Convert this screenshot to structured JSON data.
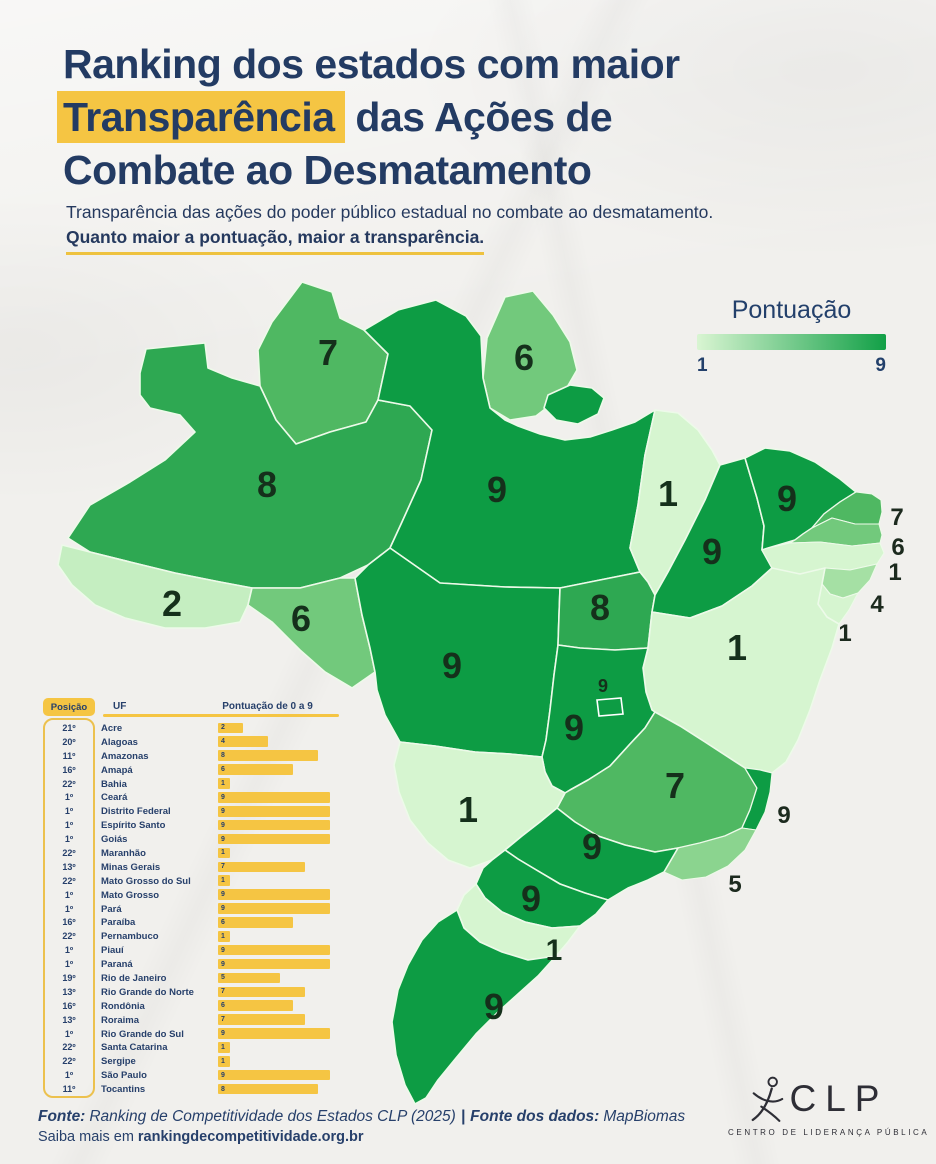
{
  "header": {
    "title_line1": "Ranking dos estados com maior",
    "title_highlight": "Transparência",
    "title_line2_rest": " das Ações de",
    "title_line3": "Combate ao Desmatamento",
    "subtitle_line1": "Transparência das ações do poder público estadual no combate ao desmatamento.",
    "subtitle_line2": "Quanto maior a pontuação, maior a transparência."
  },
  "legend": {
    "title": "Pontuação",
    "min": "1",
    "max": "9",
    "color_min": "#d9f5d2",
    "color_max": "#12a047"
  },
  "chart_data": {
    "type": "choropleth",
    "title": "Ranking dos estados com maior Transparência das Ações de Combate ao Desmatamento",
    "subtitle": "Transparência das ações do poder público estadual no combate ao desmatamento. Quanto maior a pontuação, maior a transparência.",
    "scale": {
      "label": "Pontuação de 0 a 9",
      "min": 0,
      "max": 9,
      "legend_min": 1,
      "legend_max": 9
    },
    "states": [
      {
        "position": "21º",
        "uf": "Acre",
        "score": 2
      },
      {
        "position": "20º",
        "uf": "Alagoas",
        "score": 4
      },
      {
        "position": "11º",
        "uf": "Amazonas",
        "score": 8
      },
      {
        "position": "16º",
        "uf": "Amapá",
        "score": 6
      },
      {
        "position": "22º",
        "uf": "Bahia",
        "score": 1
      },
      {
        "position": "1º",
        "uf": "Ceará",
        "score": 9
      },
      {
        "position": "1º",
        "uf": "Distrito Federal",
        "score": 9
      },
      {
        "position": "1º",
        "uf": "Espírito Santo",
        "score": 9
      },
      {
        "position": "1º",
        "uf": "Goiás",
        "score": 9
      },
      {
        "position": "22º",
        "uf": "Maranhão",
        "score": 1
      },
      {
        "position": "13º",
        "uf": "Minas Gerais",
        "score": 7
      },
      {
        "position": "22º",
        "uf": "Mato Grosso do Sul",
        "score": 1
      },
      {
        "position": "1º",
        "uf": "Mato Grosso",
        "score": 9
      },
      {
        "position": "1º",
        "uf": "Pará",
        "score": 9
      },
      {
        "position": "16º",
        "uf": "Paraíba",
        "score": 6
      },
      {
        "position": "22º",
        "uf": "Pernambuco",
        "score": 1
      },
      {
        "position": "1º",
        "uf": "Piauí",
        "score": 9
      },
      {
        "position": "1º",
        "uf": "Paraná",
        "score": 9
      },
      {
        "position": "19º",
        "uf": "Rio de Janeiro",
        "score": 5
      },
      {
        "position": "13º",
        "uf": "Rio Grande do Norte",
        "score": 7
      },
      {
        "position": "16º",
        "uf": "Rondônia",
        "score": 6
      },
      {
        "position": "13º",
        "uf": "Roraima",
        "score": 7
      },
      {
        "position": "1º",
        "uf": "Rio Grande do Sul",
        "score": 9
      },
      {
        "position": "22º",
        "uf": "Santa Catarina",
        "score": 1
      },
      {
        "position": "22º",
        "uf": "Sergipe",
        "score": 1
      },
      {
        "position": "1º",
        "uf": "São Paulo",
        "score": 9
      },
      {
        "position": "11º",
        "uf": "Tocantins",
        "score": 8
      }
    ]
  },
  "map": {
    "states": [
      {
        "id": "RR",
        "score": 7,
        "color": "#4fb862"
      },
      {
        "id": "AP",
        "score": 6,
        "color": "#72c97c"
      },
      {
        "id": "AM",
        "score": 8,
        "color": "#2ea852"
      },
      {
        "id": "PA",
        "score": 9,
        "color": "#0d9c44"
      },
      {
        "id": "AC",
        "score": 2,
        "color": "#c5eec1"
      },
      {
        "id": "RO",
        "score": 6,
        "color": "#72c97c"
      },
      {
        "id": "MT",
        "score": 9,
        "color": "#0d9c44"
      },
      {
        "id": "TO",
        "score": 8,
        "color": "#2ea852"
      },
      {
        "id": "MA",
        "score": 1,
        "color": "#d6f5d0"
      },
      {
        "id": "PI",
        "score": 9,
        "color": "#0d9c44"
      },
      {
        "id": "CE",
        "score": 9,
        "color": "#0d9c44"
      },
      {
        "id": "RN",
        "score": 7,
        "color": "#4fb862"
      },
      {
        "id": "PB",
        "score": 6,
        "color": "#72c97c"
      },
      {
        "id": "PE",
        "score": 1,
        "color": "#d6f5d0"
      },
      {
        "id": "AL",
        "score": 4,
        "color": "#a5e0a4"
      },
      {
        "id": "SE",
        "score": 1,
        "color": "#d6f5d0"
      },
      {
        "id": "BA",
        "score": 1,
        "color": "#d6f5d0"
      },
      {
        "id": "GO",
        "score": 9,
        "color": "#0d9c44"
      },
      {
        "id": "DF",
        "score": 9,
        "color": "#0d9c44"
      },
      {
        "id": "MG",
        "score": 7,
        "color": "#4fb862"
      },
      {
        "id": "ES",
        "score": 9,
        "color": "#0d9c44"
      },
      {
        "id": "RJ",
        "score": 5,
        "color": "#8bd48f"
      },
      {
        "id": "MS",
        "score": 1,
        "color": "#d6f5d0"
      },
      {
        "id": "SP",
        "score": 9,
        "color": "#0d9c44"
      },
      {
        "id": "PR",
        "score": 9,
        "color": "#0d9c44"
      },
      {
        "id": "SC",
        "score": 1,
        "color": "#d6f5d0"
      },
      {
        "id": "RS",
        "score": 9,
        "color": "#0d9c44"
      }
    ]
  },
  "table": {
    "headers": {
      "position": "Posição",
      "uf": "UF",
      "score": "Pontuação de 0 a 9"
    },
    "bar_color": "#f5c543"
  },
  "footer": {
    "fonte_label": "Fonte:",
    "fonte_value": "Ranking de Competitividade dos Estados CLP (2025)",
    "separator": "|",
    "dados_label": "Fonte dos dados:",
    "dados_value": "MapBiomas",
    "more_prefix": "Saiba mais em",
    "more_link": "rankingdecompetitividade.org.br"
  },
  "logo": {
    "text": "CLP",
    "caption": "CENTRO DE LIDERANÇA PÚBLICA"
  }
}
